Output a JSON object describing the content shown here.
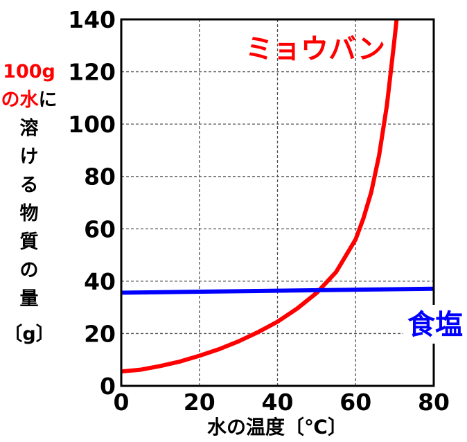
{
  "chart_data": {
    "type": "line",
    "xlabel": "水の温度〔℃〕",
    "ylabel_lines": [
      [
        {
          "text": "100g",
          "color": "#ff0000"
        }
      ],
      [
        {
          "text": "の",
          "color": "#ff0000"
        },
        {
          "text": "水",
          "color": "#ff0000"
        },
        {
          "text": "に",
          "color": "#000000"
        }
      ],
      [
        {
          "text": "溶",
          "color": "#000000"
        }
      ],
      [
        {
          "text": "け",
          "color": "#000000"
        }
      ],
      [
        {
          "text": "る",
          "color": "#000000"
        }
      ],
      [
        {
          "text": "物",
          "color": "#000000"
        }
      ],
      [
        {
          "text": "質",
          "color": "#000000"
        }
      ],
      [
        {
          "text": "の",
          "color": "#000000"
        }
      ],
      [
        {
          "text": "量",
          "color": "#000000"
        }
      ],
      [
        {
          "text": "〔g〕",
          "color": "#000000"
        }
      ]
    ],
    "xlim": [
      0,
      80
    ],
    "ylim": [
      0,
      140
    ],
    "x_ticks": [
      0,
      20,
      40,
      60,
      80
    ],
    "y_ticks": [
      0,
      20,
      40,
      60,
      80,
      100,
      120,
      140
    ],
    "grid": true,
    "series": [
      {
        "name": "ミョウバン",
        "color": "#ff0000",
        "label_color": "#ff0000",
        "x": [
          0,
          5,
          10,
          15,
          20,
          25,
          30,
          35,
          40,
          45,
          50,
          55,
          60,
          62,
          64,
          66,
          68,
          69,
          70,
          70.5
        ],
        "y": [
          5.5,
          6.2,
          7.6,
          9.3,
          11.5,
          14.0,
          17.0,
          20.5,
          24.5,
          29.5,
          35.5,
          43.5,
          56,
          64,
          74,
          88,
          107,
          120,
          133,
          140
        ]
      },
      {
        "name": "食塩",
        "color": "#0000ff",
        "label_color": "#0000ff",
        "x": [
          0,
          80
        ],
        "y": [
          35.6,
          37.1
        ]
      }
    ]
  }
}
